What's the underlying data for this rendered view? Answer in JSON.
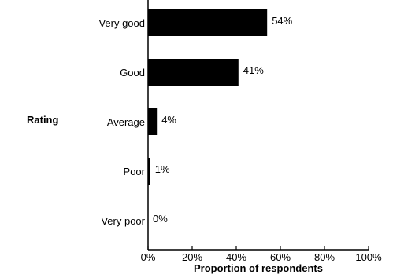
{
  "chart_data": {
    "type": "bar",
    "orientation": "horizontal",
    "categories": [
      "Very good",
      "Good",
      "Average",
      "Poor",
      "Very poor"
    ],
    "values": [
      54,
      41,
      4,
      1,
      0
    ],
    "value_labels": [
      "54%",
      "41%",
      "4%",
      "1%",
      "0%"
    ],
    "xlabel": "Proportion of respondents",
    "ylabel": "Rating",
    "xlim": [
      0,
      100
    ],
    "xticks": [
      0,
      20,
      40,
      60,
      80,
      100
    ],
    "xtick_labels": [
      "0%",
      "20%",
      "40%",
      "60%",
      "80%",
      "100%"
    ],
    "grid": false,
    "legend": "none",
    "bar_color": "#000000"
  }
}
